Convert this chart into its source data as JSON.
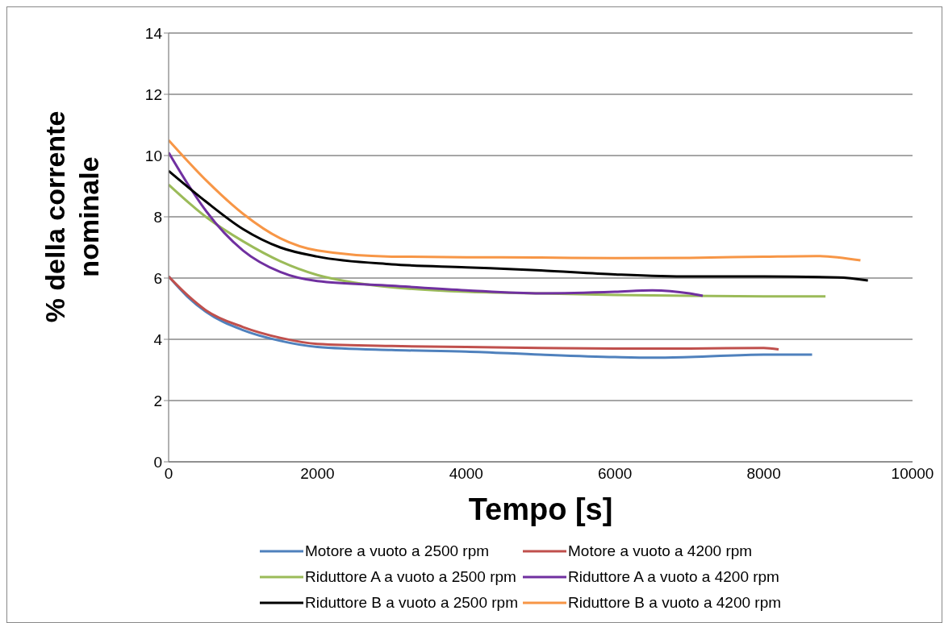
{
  "chart_data": {
    "type": "line",
    "xlabel": "Tempo [s]",
    "ylabel": "% della corrente nominale",
    "xlim": [
      0,
      10000
    ],
    "xticks": [
      0,
      2000,
      4000,
      6000,
      8000,
      10000
    ],
    "ylim": [
      0,
      14
    ],
    "yticks": [
      0,
      2,
      4,
      6,
      8,
      10,
      12,
      14
    ],
    "grid": "y",
    "legend": "bottom",
    "marker": "none",
    "line_style": "solid",
    "series": [
      {
        "name": "Motore a vuoto a 2500 rpm",
        "color": "#4f81bd",
        "x": [
          0,
          250,
          500,
          1000,
          1500,
          2000,
          3000,
          4000,
          5000,
          6000,
          6500,
          7000,
          8000,
          8650
        ],
        "values": [
          6.05,
          5.4,
          4.9,
          4.3,
          3.95,
          3.75,
          3.65,
          3.6,
          3.5,
          3.42,
          3.4,
          3.42,
          3.5,
          3.5
        ]
      },
      {
        "name": "Motore a vuoto a 4200 rpm",
        "color": "#c0504d",
        "x": [
          0,
          250,
          500,
          1000,
          1500,
          2000,
          3000,
          4000,
          5000,
          6000,
          7000,
          8000,
          8200
        ],
        "values": [
          6.05,
          5.45,
          4.95,
          4.4,
          4.05,
          3.85,
          3.78,
          3.75,
          3.72,
          3.7,
          3.7,
          3.72,
          3.67
        ]
      },
      {
        "name": "Riduttore A a vuoto a 2500 rpm",
        "color": "#9bbb59",
        "x": [
          0,
          500,
          1000,
          1500,
          2000,
          2500,
          3000,
          4000,
          5000,
          6000,
          7000,
          8000,
          8830
        ],
        "values": [
          9.05,
          8.0,
          7.2,
          6.55,
          6.1,
          5.85,
          5.7,
          5.55,
          5.5,
          5.45,
          5.42,
          5.4,
          5.4
        ]
      },
      {
        "name": "Riduttore A a vuoto a 4200 rpm",
        "color": "#7030a0",
        "x": [
          0,
          250,
          500,
          1000,
          1500,
          2000,
          3000,
          4000,
          5000,
          6000,
          6500,
          7000,
          7180
        ],
        "values": [
          10.1,
          9.1,
          8.2,
          6.9,
          6.2,
          5.9,
          5.75,
          5.6,
          5.5,
          5.55,
          5.6,
          5.5,
          5.42
        ]
      },
      {
        "name": "Riduttore B a vuoto a 2500 rpm",
        "color": "#000000",
        "x": [
          0,
          500,
          1000,
          1500,
          2000,
          3000,
          4000,
          5000,
          6000,
          7000,
          8000,
          9000,
          9400
        ],
        "values": [
          9.5,
          8.5,
          7.6,
          7.0,
          6.7,
          6.45,
          6.35,
          6.25,
          6.12,
          6.05,
          6.05,
          6.02,
          5.92
        ]
      },
      {
        "name": "Riduttore B a vuoto a 4200 rpm",
        "color": "#f79646",
        "x": [
          0,
          500,
          1000,
          1500,
          2000,
          3000,
          4000,
          5000,
          6000,
          7000,
          8000,
          8700,
          9300
        ],
        "values": [
          10.5,
          9.2,
          8.1,
          7.3,
          6.9,
          6.7,
          6.68,
          6.67,
          6.65,
          6.66,
          6.7,
          6.72,
          6.58
        ]
      }
    ]
  }
}
